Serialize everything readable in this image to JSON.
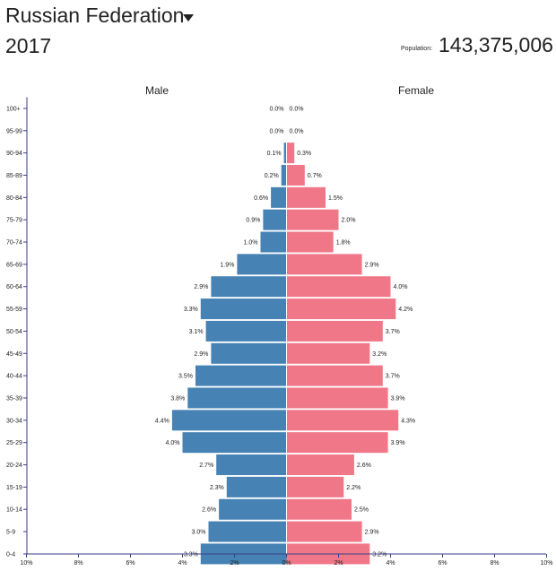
{
  "header": {
    "country": "Russian Federation",
    "year": "2017",
    "population_label": "Population:",
    "population_value": "143,375,006"
  },
  "colors": {
    "male": "#4682b4",
    "female": "#f07787",
    "axis": "#3a3f86"
  },
  "chart_data": {
    "type": "bar",
    "orientation": "horizontal-pyramid",
    "legend": [
      "Male",
      "Female"
    ],
    "categories": [
      "100+",
      "95-99",
      "90-94",
      "85-89",
      "80-84",
      "75-79",
      "70-74",
      "65-69",
      "60-64",
      "55-59",
      "50-54",
      "45-49",
      "40-44",
      "35-39",
      "30-34",
      "25-29",
      "20-24",
      "15-19",
      "10-14",
      "5-9",
      "0-4"
    ],
    "series": [
      {
        "name": "Male",
        "values": [
          0.0,
          0.0,
          0.1,
          0.2,
          0.6,
          0.9,
          1.0,
          1.9,
          2.9,
          3.3,
          3.1,
          2.9,
          3.5,
          3.8,
          4.4,
          4.0,
          2.7,
          2.3,
          2.6,
          3.0,
          3.3
        ],
        "labels": [
          "0.0%",
          "0.0%",
          "0.1%",
          "0.2%",
          "0.6%",
          "0.9%",
          "1.0%",
          "1.9%",
          "2.9%",
          "3.3%",
          "3.1%",
          "2.9%",
          "3.5%",
          "3.8%",
          "4.4%",
          "4.0%",
          "2.7%",
          "2.3%",
          "2.6%",
          "3.0%",
          "3.3%"
        ]
      },
      {
        "name": "Female",
        "values": [
          0.0,
          0.0,
          0.3,
          0.7,
          1.5,
          2.0,
          1.8,
          2.9,
          4.0,
          4.2,
          3.7,
          3.2,
          3.7,
          3.9,
          4.3,
          3.9,
          2.6,
          2.2,
          2.5,
          2.9,
          3.2
        ],
        "labels": [
          "0.0%",
          "0.0%",
          "0.3%",
          "0.7%",
          "1.5%",
          "2.0%",
          "1.8%",
          "2.9%",
          "4.0%",
          "4.2%",
          "3.7%",
          "3.2%",
          "3.7%",
          "3.9%",
          "4.3%",
          "3.9%",
          "2.6%",
          "2.2%",
          "2.5%",
          "2.9%",
          "3.2%"
        ]
      }
    ],
    "x_ticks": [
      "10%",
      "8%",
      "6%",
      "4%",
      "2%",
      "0%",
      "2%",
      "4%",
      "6%",
      "8%",
      "10%"
    ],
    "xlim": [
      -10,
      10
    ],
    "grid": false
  }
}
